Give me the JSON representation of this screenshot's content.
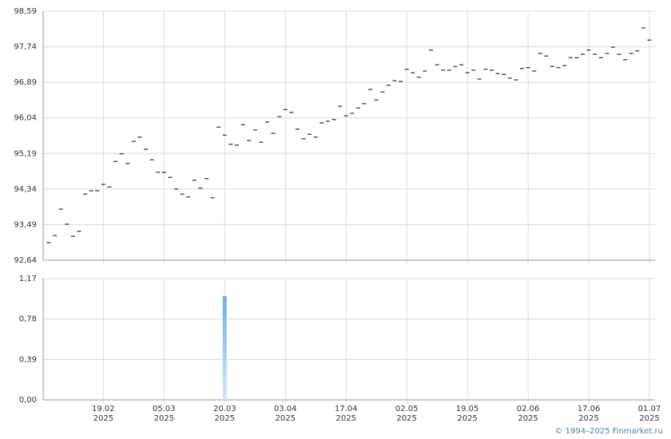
{
  "chart_data": [
    {
      "type": "dash",
      "categories": [
        null,
        null,
        null,
        null,
        null,
        null,
        null,
        null,
        null,
        "19.02\n2025",
        null,
        null,
        null,
        null,
        null,
        null,
        null,
        null,
        null,
        "05.03\n2025",
        null,
        null,
        null,
        null,
        null,
        null,
        null,
        null,
        null,
        "20.03\n2025",
        null,
        null,
        null,
        null,
        null,
        null,
        null,
        null,
        null,
        "03.04\n2025",
        null,
        null,
        null,
        null,
        null,
        null,
        null,
        null,
        null,
        "17.04\n2025",
        null,
        null,
        null,
        null,
        null,
        null,
        null,
        null,
        null,
        "02.05\n2025",
        null,
        null,
        null,
        null,
        null,
        null,
        null,
        null,
        null,
        "19.05\n2025",
        null,
        null,
        null,
        null,
        null,
        null,
        null,
        null,
        null,
        "02.06\n2025",
        null,
        null,
        null,
        null,
        null,
        null,
        null,
        null,
        null,
        "17.06\n2025",
        null,
        null,
        null,
        null,
        null,
        null,
        null,
        null,
        null,
        "01.07\n2025"
      ],
      "values": [
        93.06,
        93.23,
        93.86,
        93.5,
        93.21,
        93.33,
        94.22,
        94.3,
        94.3,
        94.45,
        94.39,
        95.0,
        95.18,
        94.95,
        95.48,
        95.58,
        95.29,
        95.04,
        94.74,
        94.74,
        94.62,
        94.34,
        94.22,
        94.15,
        94.55,
        94.36,
        94.59,
        94.13,
        95.82,
        95.63,
        95.41,
        95.39,
        95.88,
        95.5,
        95.75,
        95.46,
        95.94,
        95.67,
        96.07,
        96.24,
        96.17,
        95.77,
        95.54,
        95.65,
        95.58,
        95.92,
        95.96,
        96.0,
        96.32,
        96.09,
        96.15,
        96.28,
        96.38,
        96.72,
        96.47,
        96.66,
        96.82,
        96.93,
        96.91,
        97.2,
        97.12,
        97.01,
        97.16,
        97.66,
        97.31,
        97.18,
        97.18,
        97.27,
        97.31,
        97.12,
        97.18,
        96.97,
        97.2,
        97.18,
        97.1,
        97.08,
        96.99,
        96.95,
        97.22,
        97.24,
        97.16,
        97.58,
        97.52,
        97.27,
        97.24,
        97.29,
        97.48,
        97.48,
        97.56,
        97.66,
        97.56,
        97.48,
        97.58,
        97.73,
        97.56,
        97.43,
        97.58,
        97.64,
        98.19,
        97.9
      ],
      "color": "#000000",
      "ylim": [
        92.64,
        98.59
      ],
      "yticks": [
        {
          "value": 92.64,
          "label": "92,64"
        },
        {
          "value": 93.49,
          "label": "93,49"
        },
        {
          "value": 94.34,
          "label": "94,34"
        },
        {
          "value": 95.19,
          "label": "95,19"
        },
        {
          "value": 96.04,
          "label": "96,04"
        },
        {
          "value": 96.89,
          "label": "96,89"
        },
        {
          "value": 97.74,
          "label": "97,74"
        },
        {
          "value": 98.59,
          "label": "98,59"
        }
      ],
      "grid": true
    },
    {
      "type": "bar",
      "values": [
        0,
        0,
        0,
        0,
        0,
        0,
        0,
        0,
        0,
        0,
        0,
        0,
        0,
        0,
        0,
        0,
        0,
        0,
        0,
        0,
        0,
        0,
        0,
        0,
        0,
        0,
        0,
        0,
        0,
        1.0,
        0,
        0,
        0,
        0,
        0,
        0,
        0,
        0,
        0,
        0,
        0,
        0,
        0,
        0,
        0,
        0,
        0,
        0,
        0,
        0,
        0,
        0,
        0,
        0,
        0,
        0,
        0,
        0,
        0,
        0,
        0,
        0,
        0,
        0,
        0,
        0,
        0,
        0,
        0,
        0,
        0,
        0,
        0,
        0,
        0,
        0,
        0,
        0,
        0,
        0,
        0,
        0,
        0,
        0,
        0,
        0,
        0,
        0,
        0,
        0,
        0,
        0,
        0,
        0,
        0,
        0,
        0,
        0,
        0,
        0
      ],
      "color": "#6aaee8",
      "ylim": [
        0,
        1.17
      ],
      "yticks": [
        {
          "value": 0,
          "label": "0,00"
        },
        {
          "value": 0.39,
          "label": "0,39"
        },
        {
          "value": 0.78,
          "label": "0,78"
        },
        {
          "value": 1.17,
          "label": "1,17"
        }
      ],
      "grid": true
    }
  ],
  "footer": "© 1994–2025 Finmarket.ru"
}
